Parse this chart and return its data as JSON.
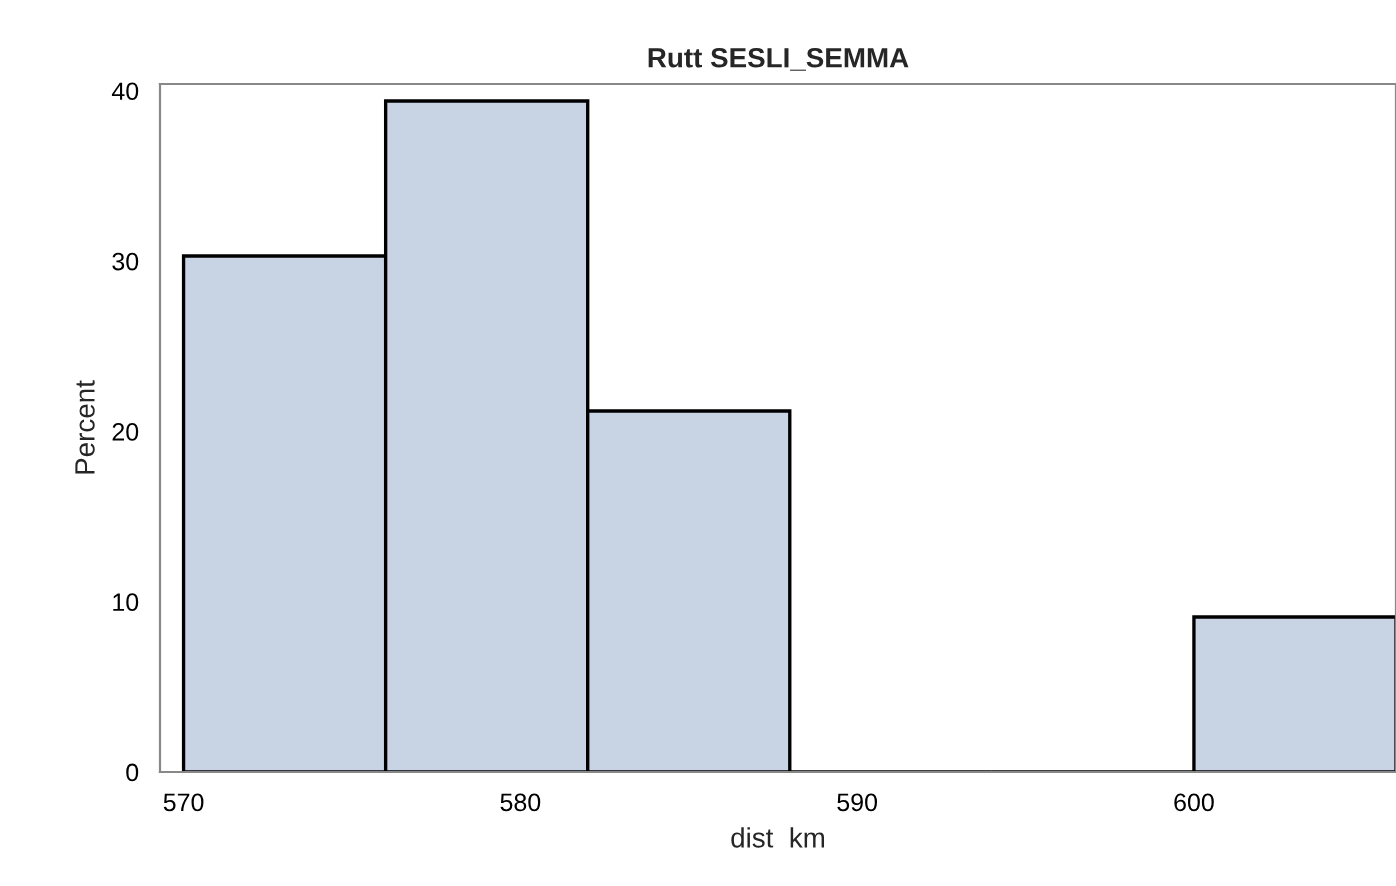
{
  "chart_data": {
    "type": "histogram",
    "title": "Rutt SESLI_SEMMA",
    "xlabel": "dist  km",
    "ylabel": "Percent",
    "bins": [
      570,
      576,
      582,
      588,
      594,
      600,
      606
    ],
    "values": [
      30.3,
      39.4,
      21.2,
      0,
      0,
      9.1
    ],
    "color": "#c8d4e4",
    "xlim": [
      569.3,
      606
    ],
    "xticks": [
      570,
      580,
      590,
      600
    ],
    "ylim": [
      0,
      40.4
    ],
    "yticks": [
      0,
      10,
      20,
      30,
      40
    ],
    "grid": false,
    "legend": false
  }
}
